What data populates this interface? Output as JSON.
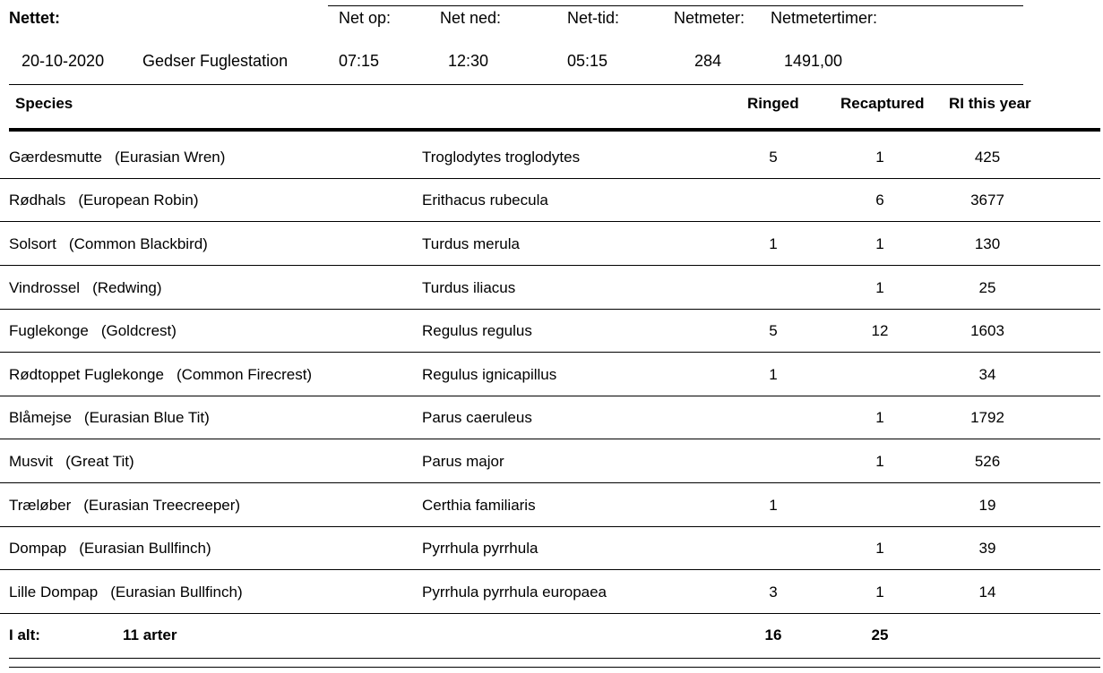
{
  "header": {
    "nettet_label": "Nettet:",
    "net_op_label": "Net op:",
    "net_ned_label": "Net ned:",
    "net_tid_label": "Net-tid:",
    "netmeter_label": "Netmeter:",
    "netmetertimer_label": "Netmetertimer:",
    "date": "20-10-2020",
    "station": "Gedser Fuglestation",
    "net_op": "07:15",
    "net_ned": "12:30",
    "net_tid": "05:15",
    "netmeter": "284",
    "netmetertimer": "1491,00"
  },
  "table": {
    "columns": {
      "species": "Species",
      "ringed": "Ringed",
      "recaptured": "Recaptured",
      "ri_this_year": "RI this year"
    },
    "rows": [
      {
        "danish": "Gærdesmutte",
        "english": "(Eurasian Wren)",
        "latin": "Troglodytes troglodytes",
        "ringed": "5",
        "recaptured": "1",
        "ri": "425"
      },
      {
        "danish": "Rødhals",
        "english": "(European Robin)",
        "latin": "Erithacus rubecula",
        "ringed": "",
        "recaptured": "6",
        "ri": "3677"
      },
      {
        "danish": "Solsort",
        "english": "(Common Blackbird)",
        "latin": "Turdus merula",
        "ringed": "1",
        "recaptured": "1",
        "ri": "130"
      },
      {
        "danish": "Vindrossel",
        "english": "(Redwing)",
        "latin": "Turdus iliacus",
        "ringed": "",
        "recaptured": "1",
        "ri": "25"
      },
      {
        "danish": "Fuglekonge",
        "english": "(Goldcrest)",
        "latin": "Regulus regulus",
        "ringed": "5",
        "recaptured": "12",
        "ri": "1603"
      },
      {
        "danish": "Rødtoppet Fuglekonge",
        "english": "(Common Firecrest)",
        "latin": "Regulus ignicapillus",
        "ringed": "1",
        "recaptured": "",
        "ri": "34"
      },
      {
        "danish": "Blåmejse",
        "english": "(Eurasian Blue Tit)",
        "latin": "Parus caeruleus",
        "ringed": "",
        "recaptured": "1",
        "ri": "1792"
      },
      {
        "danish": "Musvit",
        "english": "(Great Tit)",
        "latin": "Parus major",
        "ringed": "",
        "recaptured": "1",
        "ri": "526"
      },
      {
        "danish": "Træløber",
        "english": "(Eurasian Treecreeper)",
        "latin": "Certhia familiaris",
        "ringed": "1",
        "recaptured": "",
        "ri": "19"
      },
      {
        "danish": "Dompap",
        "english": "(Eurasian Bullfinch)",
        "latin": "Pyrrhula pyrrhula",
        "ringed": "",
        "recaptured": "1",
        "ri": "39"
      },
      {
        "danish": "Lille Dompap",
        "english": "(Eurasian Bullfinch)",
        "latin": "Pyrrhula pyrrhula europaea",
        "ringed": "3",
        "recaptured": "1",
        "ri": "14"
      }
    ],
    "total": {
      "label": "I alt:",
      "species_count": "11 arter",
      "ringed": "16",
      "recaptured": "25"
    }
  }
}
